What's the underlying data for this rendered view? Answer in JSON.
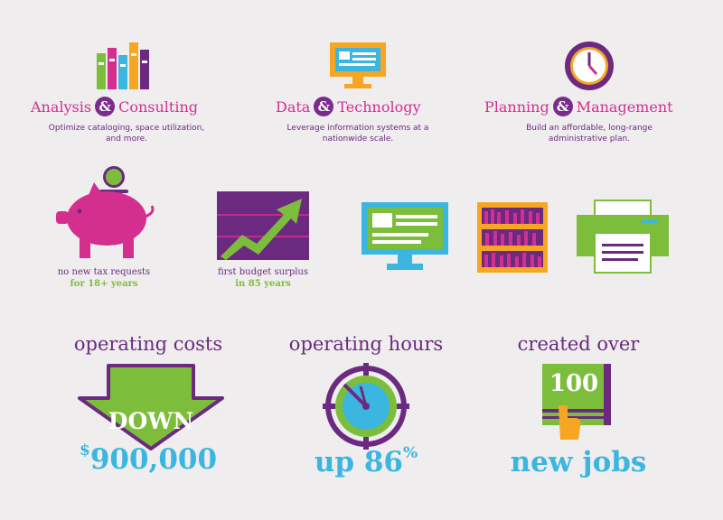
{
  "services": [
    {
      "title_a": "Analysis",
      "amp": "&",
      "title_b": "Consulting",
      "desc_l1": "Optimize cataloging, space utilization,",
      "desc_l2": "and more."
    },
    {
      "title_a": "Data",
      "amp": "&",
      "title_b": "Technology",
      "desc_l1": "Leverage information systems at a",
      "desc_l2": "nationwide scale."
    },
    {
      "title_a": "Planning",
      "amp": "&",
      "title_b": "Management",
      "desc_l1": "Build an affordable, long-range",
      "desc_l2": "administrative plan."
    }
  ],
  "highlights": [
    {
      "line1": "no new tax requests",
      "line2": "for 18+ years"
    },
    {
      "line1": "first budget surplus",
      "line2": "in 85 years"
    }
  ],
  "stats": [
    {
      "heading": "operating costs",
      "badge": "DOWN",
      "value_sup": "$",
      "value": "900,000"
    },
    {
      "heading": "operating hours",
      "value": "up 86",
      "value_sup": "%"
    },
    {
      "heading": "created over",
      "badge": "100",
      "value": "new jobs"
    }
  ],
  "colors": {
    "pink": "#d42f8f",
    "purple": "#6b2a80",
    "green": "#7cbe3b",
    "blue": "#3ab6e0",
    "orange": "#f6a623"
  }
}
